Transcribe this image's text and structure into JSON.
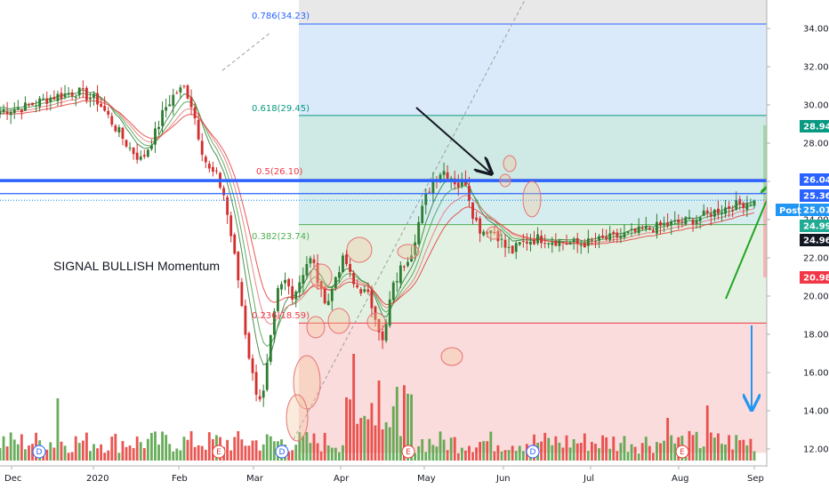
{
  "chart_data": {
    "type": "candlestick",
    "y_range": [
      11,
      35.5
    ],
    "y_ticks": [
      "12.00",
      "14.00",
      "16.00",
      "18.00",
      "20.00",
      "22.00",
      "24.00",
      "26.00",
      "28.00",
      "30.00",
      "32.00",
      "34.00"
    ],
    "x_labels": [
      "Dec",
      "2020",
      "Feb",
      "Mar",
      "Apr",
      "May",
      "Jun",
      "Jul",
      "Aug",
      "Sep"
    ],
    "annotation": "SIGNAL BULLISH Momentum",
    "fib_levels": [
      {
        "label": "0.786(34.23)",
        "price": 34.23,
        "color": "#2962ff"
      },
      {
        "label": "0.618(29.45)",
        "price": 29.45,
        "color": "#089981"
      },
      {
        "label": "0.5(26.10)",
        "price": 26.1,
        "color": "#f23645"
      },
      {
        "label": "0.382(23.74)",
        "price": 23.74,
        "color": "#4caf50"
      },
      {
        "label": "0.236(18.59)",
        "price": 18.59,
        "color": "#f23645"
      }
    ],
    "price_badges": [
      {
        "text": "28.94",
        "price": 28.94,
        "color": "#089981"
      },
      {
        "text": "26.04",
        "price": 26.04,
        "color": "#2962ff"
      },
      {
        "text": "25.36",
        "price": 25.36,
        "color": "#2962ff"
      },
      {
        "text": "25.01",
        "price": 25.01,
        "color": "#2196f3"
      },
      {
        "text": "24.99",
        "price": 24.99,
        "color": "#22ab94"
      },
      {
        "text": "24.96",
        "price": 24.96,
        "color": "#131722"
      },
      {
        "text": "20.98",
        "price": 20.98,
        "color": "#f23645"
      }
    ],
    "post_label": "Post",
    "horizontal_lines": [
      {
        "price": 26.04,
        "color": "#2962ff",
        "thick": true
      },
      {
        "price": 25.36,
        "color": "#2962ff",
        "thick": false
      },
      {
        "price": 25.01,
        "color": "#2196f3",
        "dotted": true
      }
    ],
    "event_markers": [
      {
        "letter": "D"
      },
      {
        "letter": "E"
      },
      {
        "letter": "D"
      },
      {
        "letter": "E"
      },
      {
        "letter": "D"
      },
      {
        "letter": "E"
      }
    ]
  }
}
